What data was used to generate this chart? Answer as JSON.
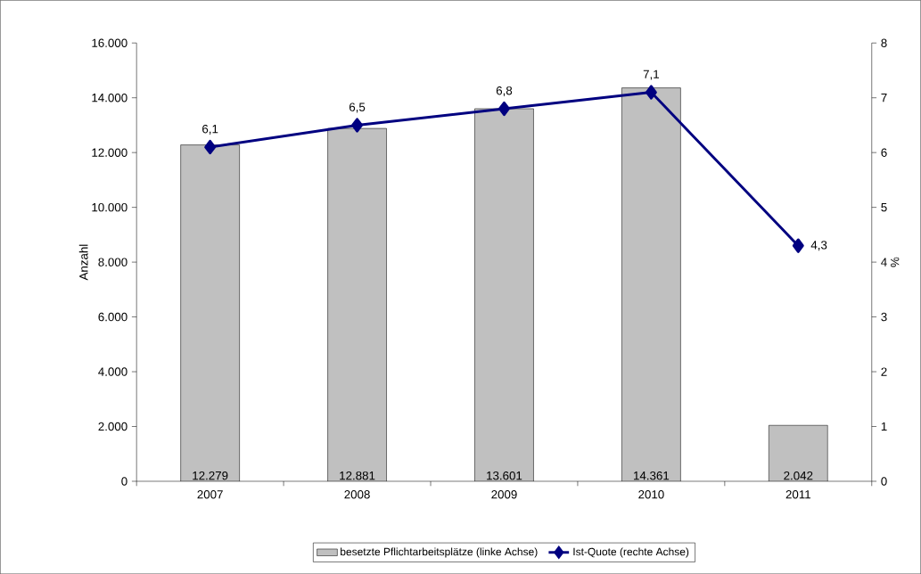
{
  "chart_data": {
    "type": "bar",
    "categories": [
      "2007",
      "2008",
      "2009",
      "2010",
      "2011"
    ],
    "series": [
      {
        "name": "besetzte Pflichtarbeitsplätze (linke Achse)",
        "color": "#c0c0c0",
        "values": [
          12279,
          12881,
          13601,
          14361,
          2042
        ],
        "value_labels": [
          "12.279",
          "12.881",
          "13.601",
          "14.361",
          "2.042"
        ]
      },
      {
        "name": "Ist-Quote (rechte Achse)",
        "type": "line",
        "axis": "y2",
        "color": "#000080",
        "marker": "diamond",
        "values": [
          6.1,
          6.5,
          6.8,
          7.1,
          4.3
        ],
        "value_labels": [
          "6,1",
          "6,5",
          "6,8",
          "7,1",
          "4,3"
        ]
      }
    ],
    "ylabel": "Anzahl",
    "y2label": "%",
    "ylim": [
      0,
      16000
    ],
    "yticks": [
      0,
      {
        "value": 2000,
        "label": "2.000"
      },
      {
        "value": 4000,
        "label": "4.000"
      },
      {
        "value": 6000,
        "label": "6.000"
      },
      {
        "value": 8000,
        "label": "8.000"
      },
      {
        "value": 10000,
        "label": "10.000"
      },
      {
        "value": 12000,
        "label": "12.000"
      },
      {
        "value": 14000,
        "label": "14.000"
      },
      {
        "value": 16000,
        "label": "16.000"
      }
    ],
    "y2lim": [
      0,
      8
    ],
    "y2ticks": [
      0,
      1,
      2,
      3,
      4,
      5,
      6,
      7,
      8
    ],
    "legend": "bottom",
    "grid": false
  }
}
